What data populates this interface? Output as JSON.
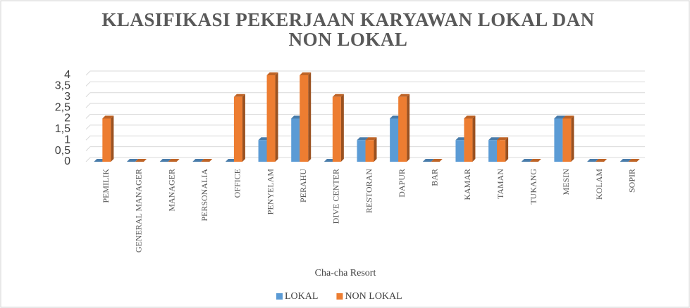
{
  "chart_data": {
    "type": "bar",
    "title": "KLASIFIKASI PEKERJAAN KARYAWAN LOKAL DAN NON LOKAL",
    "x_label": "Cha-cha Resort",
    "categories": [
      "PEMILIK",
      "GENERAL MANAGER",
      "MANAGER",
      "PERSONALIA",
      "OFFICE",
      "PENYELAM",
      "PERAHU",
      "DIVE CENTER",
      "RESTORAN",
      "DAPUR",
      "BAR",
      "KAMAR",
      "TAMAN",
      "TUKANG",
      "MESIN",
      "KOLAM",
      "SOPIR"
    ],
    "series": [
      {
        "name": "LOKAL",
        "color": "#5b9bd5",
        "values": [
          0,
          0,
          0,
          0,
          0,
          1,
          2,
          0,
          1,
          2,
          0,
          1,
          1,
          0,
          2,
          0,
          0
        ]
      },
      {
        "name": "NON LOKAL",
        "color": "#ed7d31",
        "values": [
          2,
          0,
          0,
          0,
          3,
          4,
          4,
          3,
          1,
          3,
          0,
          2,
          1,
          0,
          2,
          0,
          0
        ]
      }
    ],
    "ylim": [
      0,
      4
    ],
    "yticks": [
      0,
      {
        "value": 0.5,
        "label": "0,5"
      },
      1,
      {
        "value": 1.5,
        "label": "1,5"
      },
      2,
      {
        "value": 2.5,
        "label": "2,5"
      },
      3,
      {
        "value": 3.5,
        "label": "3,5"
      },
      4
    ],
    "grid": true,
    "legend": "bottom"
  }
}
